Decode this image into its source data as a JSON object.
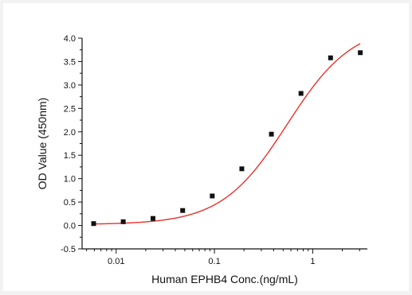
{
  "chart_data": {
    "type": "scatter",
    "xlabel": "Human EPHB4 Conc.(ng/mL)",
    "ylabel": "OD Value (450nm)",
    "xscale": "log",
    "xlim": [
      0.0045,
      3.6
    ],
    "ylim": [
      -0.5,
      4.0
    ],
    "x_ticks": [
      0.01,
      0.1,
      1
    ],
    "x_tick_labels": [
      "0.01",
      "0.1",
      "1"
    ],
    "y_ticks": [
      -0.5,
      0.0,
      0.5,
      1.0,
      1.5,
      2.0,
      2.5,
      3.0,
      3.5,
      4.0
    ],
    "y_tick_labels": [
      "-0.5",
      "0.0",
      "0.5",
      "1.0",
      "1.5",
      "2.0",
      "2.5",
      "3.0",
      "3.5",
      "4.0"
    ],
    "grid": false,
    "legend": false,
    "series": [
      {
        "type": "scatter",
        "marker": "square",
        "color": "#111111",
        "points": [
          {
            "x": 0.0059,
            "y": 0.04
          },
          {
            "x": 0.0118,
            "y": 0.08
          },
          {
            "x": 0.0237,
            "y": 0.15
          },
          {
            "x": 0.0475,
            "y": 0.32
          },
          {
            "x": 0.095,
            "y": 0.63
          },
          {
            "x": 0.19,
            "y": 1.21
          },
          {
            "x": 0.38,
            "y": 1.95
          },
          {
            "x": 0.76,
            "y": 2.82
          },
          {
            "x": 1.52,
            "y": 3.58
          },
          {
            "x": 3.05,
            "y": 3.69
          }
        ]
      },
      {
        "type": "line",
        "color": "#e8312a",
        "fit": "four-parameter logistic",
        "params": {
          "bottom": 0.02,
          "top": 4.3,
          "ec50": 0.55,
          "hill": 1.3
        },
        "x_range": [
          0.0059,
          3.05
        ]
      }
    ]
  }
}
